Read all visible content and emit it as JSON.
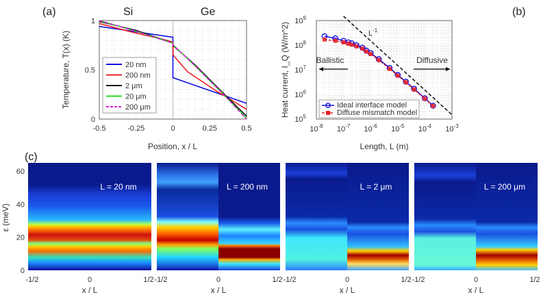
{
  "chart_data": [
    {
      "panel": "(a)",
      "type": "line",
      "material_labels": [
        "Si",
        "Ge"
      ],
      "xlabel": "Position, x / L",
      "ylabel": "Temperature, T(x) (K)",
      "xlim": [
        -0.5,
        0.5
      ],
      "ylim": [
        0,
        1
      ],
      "xticks": [
        "-0.5",
        "-0.25",
        "0",
        "0.25",
        "0.5"
      ],
      "yticks": [
        "0",
        "0.5",
        "1"
      ],
      "legend_position": "center-left",
      "series": [
        {
          "name": "20 nm",
          "color": "#1010e0",
          "dash": false,
          "points": [
            [
              -0.5,
              0.94
            ],
            [
              0,
              0.83
            ],
            [
              0,
              0.42
            ],
            [
              0.5,
              0.16
            ]
          ]
        },
        {
          "name": "200 nm",
          "color": "#ee2222",
          "dash": false,
          "points": [
            [
              -0.5,
              0.97
            ],
            [
              -0.3,
              0.89
            ],
            [
              -0.1,
              0.82
            ],
            [
              -0.02,
              0.79
            ],
            [
              0,
              0.78
            ],
            [
              0.002,
              0.65
            ],
            [
              0.03,
              0.6
            ],
            [
              0.1,
              0.48
            ],
            [
              0.3,
              0.28
            ],
            [
              0.5,
              0.1
            ]
          ]
        },
        {
          "name": "2 μm",
          "color": "#111111",
          "dash": false,
          "points": [
            [
              -0.5,
              0.99
            ],
            [
              -0.25,
              0.9
            ],
            [
              0,
              0.77
            ],
            [
              0.005,
              0.74
            ],
            [
              0.15,
              0.55
            ],
            [
              0.35,
              0.25
            ],
            [
              0.5,
              0.03
            ]
          ]
        },
        {
          "name": "20 μm",
          "color": "#22dd22",
          "dash": false,
          "points": [
            [
              -0.5,
              1.0
            ],
            [
              -0.25,
              0.89
            ],
            [
              0,
              0.77
            ],
            [
              0.003,
              0.75
            ],
            [
              0.15,
              0.54
            ],
            [
              0.35,
              0.24
            ],
            [
              0.5,
              0.01
            ]
          ]
        },
        {
          "name": "200 μm",
          "color": "#dd22dd",
          "dash": true,
          "points": [
            [
              -0.5,
              1.0
            ],
            [
              -0.25,
              0.89
            ],
            [
              0,
              0.77
            ],
            [
              0.003,
              0.75
            ],
            [
              0.15,
              0.54
            ],
            [
              0.35,
              0.24
            ],
            [
              0.5,
              0.0
            ]
          ]
        }
      ]
    },
    {
      "panel": "(b)",
      "type": "line",
      "xscale": "log",
      "yscale": "log",
      "xlabel": "Length, L (m)",
      "ylabel": "Heat current, I_Q (W/m^2)",
      "xlim": [
        1e-08,
        0.001
      ],
      "ylim": [
        100000.0,
        1000000000.0
      ],
      "xticks": [
        {
          "mantissa": "10",
          "exp": "-8"
        },
        {
          "mantissa": "10",
          "exp": "-7"
        },
        {
          "mantissa": "10",
          "exp": "-6"
        },
        {
          "mantissa": "10",
          "exp": "-5"
        },
        {
          "mantissa": "10",
          "exp": "-4"
        },
        {
          "mantissa": "10",
          "exp": "-3"
        }
      ],
      "yticks": [
        {
          "mantissa": "10",
          "exp": "5"
        },
        {
          "mantissa": "10",
          "exp": "6"
        },
        {
          "mantissa": "10",
          "exp": "7"
        },
        {
          "mantissa": "10",
          "exp": "8"
        },
        {
          "mantissa": "10",
          "exp": "9"
        }
      ],
      "annotations": {
        "slope": "L^-1",
        "ballistic": "Ballistic",
        "diffusive": "Diffusive"
      },
      "legend_position": "bottom-left",
      "series": [
        {
          "name": "Ideal interface model",
          "color": "#1010e0",
          "marker": "circle",
          "x": [
            2e-08,
            5e-08,
            1e-07,
            1.5e-07,
            2e-07,
            3e-07,
            5e-07,
            7e-07,
            1e-06,
            2e-06,
            5e-06,
            1e-05,
            2e-05,
            4e-05,
            0.0001,
            0.0002
          ],
          "y": [
            230000000.0,
            190000000.0,
            150000000.0,
            130000000.0,
            120000000.0,
            100000000.0,
            80000000.0,
            60000000.0,
            48000000.0,
            27000000.0,
            12000000.0,
            6200000.0,
            3300000.0,
            1700000.0,
            700000.0,
            350000.0
          ]
        },
        {
          "name": "Diffuse mismatch model",
          "color": "#ee2222",
          "marker": "square",
          "x": [
            2e-08,
            5e-08,
            1e-07,
            1.5e-07,
            2e-07,
            3e-07,
            5e-07,
            7e-07,
            1e-06,
            2e-06,
            5e-06,
            1e-05,
            2e-05,
            4e-05,
            0.0001,
            0.0002
          ],
          "y": [
            170000000.0,
            150000000.0,
            130000000.0,
            115000000.0,
            105000000.0,
            90000000.0,
            72000000.0,
            55000000.0,
            44000000.0,
            25000000.0,
            11000000.0,
            5800000.0,
            3100000.0,
            1600000.0,
            670000.0,
            340000.0
          ]
        },
        {
          "name": "L^-1 reference",
          "color": "#000000",
          "dash": true,
          "x": [
            1e-07,
            0.001
          ],
          "y": [
            1500000000.0,
            150000.0
          ]
        }
      ]
    },
    {
      "panel": "(c)",
      "type": "heatmap",
      "ylabel": "ε (meV)",
      "xlabel": "x / L",
      "ylim": [
        0,
        65
      ],
      "yticks": [
        "0",
        "20",
        "40",
        "60"
      ],
      "xticks": [
        "-1/2",
        "0",
        "1/2"
      ],
      "maps": [
        {
          "label": "L = 20 nm"
        },
        {
          "label": "L = 200 nm"
        },
        {
          "label": "L = 2 μm"
        },
        {
          "label": "L = 200 μm"
        }
      ]
    }
  ],
  "panel_labels": [
    "(a)",
    "(b)",
    "(c)"
  ]
}
